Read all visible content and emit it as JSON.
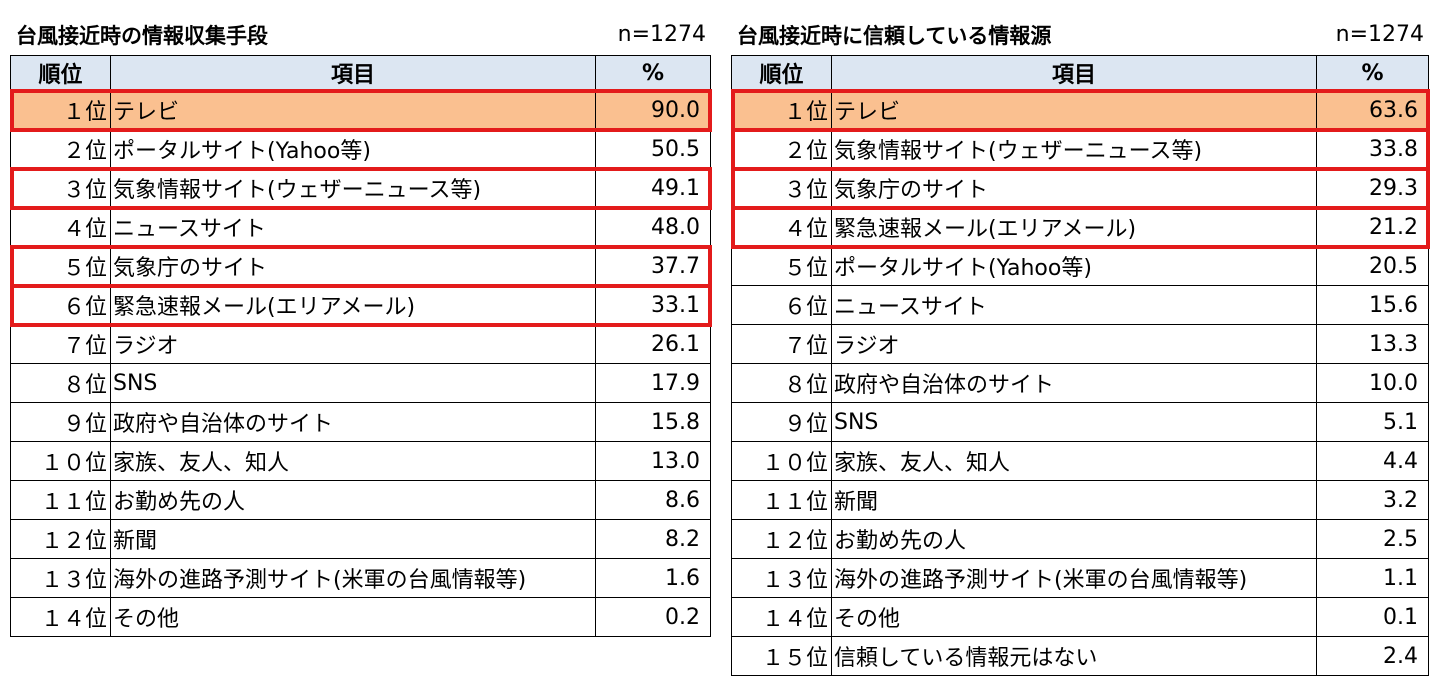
{
  "chart_data": [
    {
      "type": "table",
      "title": "台風接近時の情報収集手段",
      "n_label": "n=1274",
      "columns": [
        "順位",
        "項目",
        "%"
      ],
      "rows": [
        {
          "rank": "１位",
          "item": "テレビ",
          "value": "90.0",
          "highlight": true
        },
        {
          "rank": "２位",
          "item": "ポータルサイト(Yahoo等)",
          "value": "50.5",
          "highlight": false
        },
        {
          "rank": "３位",
          "item": "気象情報サイト(ウェザーニュース等)",
          "value": "49.1",
          "highlight": true
        },
        {
          "rank": "４位",
          "item": "ニュースサイト",
          "value": "48.0",
          "highlight": false
        },
        {
          "rank": "５位",
          "item": "気象庁のサイト",
          "value": "37.7",
          "highlight": true
        },
        {
          "rank": "６位",
          "item": "緊急速報メール(エリアメール)",
          "value": "33.1",
          "highlight": true
        },
        {
          "rank": "７位",
          "item": "ラジオ",
          "value": "26.1",
          "highlight": false
        },
        {
          "rank": "８位",
          "item": "SNS",
          "value": "17.9",
          "highlight": false
        },
        {
          "rank": "９位",
          "item": "政府や自治体のサイト",
          "value": "15.8",
          "highlight": false
        },
        {
          "rank": "１０位",
          "item": "家族、友人、知人",
          "value": "13.0",
          "highlight": false
        },
        {
          "rank": "１１位",
          "item": "お勤め先の人",
          "value": "8.6",
          "highlight": false
        },
        {
          "rank": "１２位",
          "item": "新聞",
          "value": "8.2",
          "highlight": false
        },
        {
          "rank": "１３位",
          "item": "海外の進路予測サイト(米軍の台風情報等)",
          "value": "1.6",
          "highlight": false
        },
        {
          "rank": "１４位",
          "item": "その他",
          "value": "0.2",
          "highlight": false
        }
      ]
    },
    {
      "type": "table",
      "title": "台風接近時に信頼している情報源",
      "n_label": "n=1274",
      "columns": [
        "順位",
        "項目",
        "%"
      ],
      "rows": [
        {
          "rank": "１位",
          "item": "テレビ",
          "value": "63.6",
          "highlight": true
        },
        {
          "rank": "２位",
          "item": "気象情報サイト(ウェザーニュース等)",
          "value": "33.8",
          "highlight": true
        },
        {
          "rank": "３位",
          "item": "気象庁のサイト",
          "value": "29.3",
          "highlight": true
        },
        {
          "rank": "４位",
          "item": "緊急速報メール(エリアメール)",
          "value": "21.2",
          "highlight": true
        },
        {
          "rank": "５位",
          "item": "ポータルサイト(Yahoo等)",
          "value": "20.5",
          "highlight": false
        },
        {
          "rank": "６位",
          "item": "ニュースサイト",
          "value": "15.6",
          "highlight": false
        },
        {
          "rank": "７位",
          "item": "ラジオ",
          "value": "13.3",
          "highlight": false
        },
        {
          "rank": "８位",
          "item": "政府や自治体のサイト",
          "value": "10.0",
          "highlight": false
        },
        {
          "rank": "９位",
          "item": "SNS",
          "value": "5.1",
          "highlight": false
        },
        {
          "rank": "１０位",
          "item": "家族、友人、知人",
          "value": "4.4",
          "highlight": false
        },
        {
          "rank": "１１位",
          "item": "新聞",
          "value": "3.2",
          "highlight": false
        },
        {
          "rank": "１２位",
          "item": "お勤め先の人",
          "value": "2.5",
          "highlight": false
        },
        {
          "rank": "１３位",
          "item": "海外の進路予測サイト(米軍の台風情報等)",
          "value": "1.1",
          "highlight": false
        },
        {
          "rank": "１４位",
          "item": "その他",
          "value": "0.1",
          "highlight": false
        },
        {
          "rank": "１５位",
          "item": "信頼している情報元はない",
          "value": "2.4",
          "highlight": false
        }
      ]
    }
  ],
  "colors": {
    "header_bg": "#dce6f2",
    "top_row_bg": "#fac090",
    "highlight_border": "#e31b1b"
  }
}
